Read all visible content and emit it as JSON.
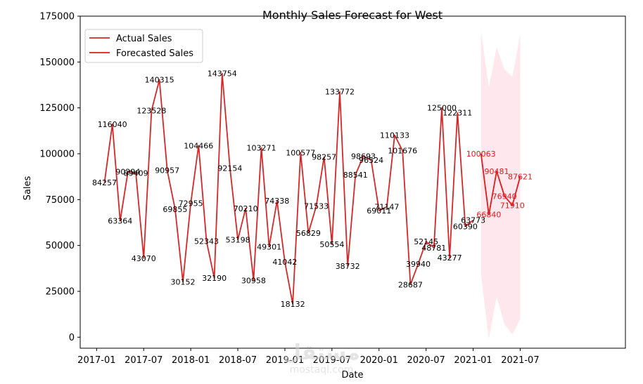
{
  "chart_data": {
    "type": "line",
    "title": "Monthly Sales Forecast for West",
    "xlabel": "Date",
    "ylabel": "Sales",
    "ylim": [
      -6000,
      175000
    ],
    "yticks": [
      0,
      25000,
      50000,
      75000,
      100000,
      125000,
      150000,
      175000
    ],
    "xticks": [
      "2017-01",
      "2017-07",
      "2018-01",
      "2018-07",
      "2019-01",
      "2019-07",
      "2020-01",
      "2020-07",
      "2021-01",
      "2021-07"
    ],
    "x_start": "2017-02",
    "legend": [
      "Actual Sales",
      "Forecasted Sales"
    ],
    "legend_position": "top-left",
    "colors": {
      "actual": "#d62728",
      "forecast": "#e31a1c",
      "band": "#ffe4ec",
      "label_actual": "#000000",
      "label_forecast": "#e31a1c"
    },
    "series": [
      {
        "name": "Actual Sales",
        "start_index": 0,
        "values": [
          84257,
          116040,
          63364,
          90294,
          89409,
          43070,
          123528,
          140315,
          90957,
          69855,
          30152,
          72955,
          104466,
          52343,
          32190,
          143754,
          92154,
          53198,
          70210,
          30958,
          103271,
          49301,
          74338,
          41042,
          18132,
          100577,
          56829,
          71533,
          98257,
          50554,
          133772,
          38732,
          88541,
          98693,
          96524,
          69011,
          71147,
          110133,
          101676,
          28687,
          39940,
          52145,
          48781,
          125000,
          43277,
          122311,
          60390,
          63773
        ]
      },
      {
        "name": "Forecasted Sales",
        "start_index": 48,
        "values": [
          100063,
          66840,
          90481,
          76940,
          71910,
          87621
        ],
        "lower": [
          34000,
          -1000,
          22000,
          7000,
          1500,
          10000
        ],
        "upper": [
          167000,
          136000,
          158000,
          146000,
          142000,
          165000
        ]
      }
    ]
  },
  "watermark": {
    "logo": "مستقل",
    "text": "mostaql.com"
  }
}
